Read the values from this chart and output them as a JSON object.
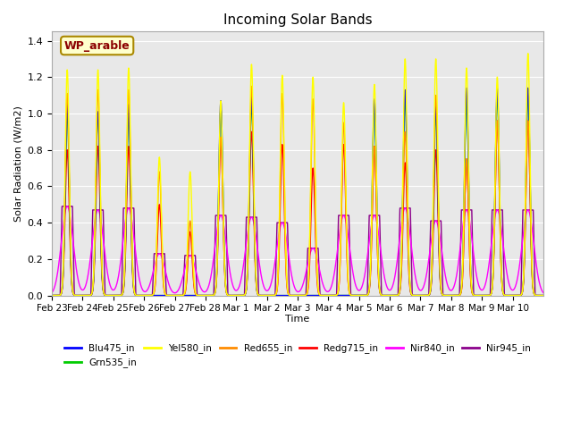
{
  "title": "Incoming Solar Bands",
  "xlabel": "Time",
  "ylabel": "Solar Radiation (W/m2)",
  "ylim": [
    0.0,
    1.45
  ],
  "yticks": [
    0.0,
    0.2,
    0.4,
    0.6,
    0.8,
    1.0,
    1.2,
    1.4
  ],
  "annotation_text": "WP_arable",
  "annotation_color": "#8B0000",
  "annotation_bg": "#FFFFCC",
  "annotation_border": "#AA8800",
  "series_colors": {
    "Blu475_in": "#0000FF",
    "Grn535_in": "#00CC00",
    "Yel580_in": "#FFFF00",
    "Red655_in": "#FF8C00",
    "Redg715_in": "#FF0000",
    "Nir840_in": "#FF00FF",
    "Nir945_in": "#8B008B"
  },
  "lw": 1.0,
  "n_days": 16,
  "ppd": 288,
  "bg_color": "#E8E8E8",
  "grid_color": "#FFFFFF",
  "day_peaks": [
    {
      "day": 0,
      "yel": 1.24,
      "red": 1.11,
      "redg": 0.8,
      "blu": 1.05,
      "grn": 1.0,
      "nir840": 0.49,
      "nir945": 0.49
    },
    {
      "day": 1,
      "yel": 1.24,
      "red": 1.13,
      "redg": 0.82,
      "blu": 1.01,
      "grn": 1.0,
      "nir840": 0.47,
      "nir945": 0.47
    },
    {
      "day": 2,
      "yel": 1.25,
      "red": 1.13,
      "redg": 0.82,
      "blu": 1.05,
      "grn": 1.02,
      "nir840": 0.48,
      "nir945": 0.48
    },
    {
      "day": 3,
      "yel": 0.76,
      "red": 0.68,
      "redg": 0.5,
      "blu": 0.0,
      "grn": 0.0,
      "nir840": 0.23,
      "nir945": 0.23
    },
    {
      "day": 4,
      "yel": 0.68,
      "red": 0.41,
      "redg": 0.35,
      "blu": 0.0,
      "grn": 0.0,
      "nir840": 0.22,
      "nir945": 0.22
    },
    {
      "day": 5,
      "yel": 1.07,
      "red": 0.87,
      "redg": 0.87,
      "blu": 1.07,
      "grn": 1.03,
      "nir840": 0.44,
      "nir945": 0.44
    },
    {
      "day": 6,
      "yel": 1.27,
      "red": 1.15,
      "redg": 0.9,
      "blu": 1.09,
      "grn": 1.05,
      "nir840": 0.43,
      "nir945": 0.43
    },
    {
      "day": 7,
      "yel": 1.21,
      "red": 1.11,
      "redg": 0.83,
      "blu": 0.0,
      "grn": 0.0,
      "nir840": 0.4,
      "nir945": 0.4
    },
    {
      "day": 8,
      "yel": 1.2,
      "red": 1.08,
      "redg": 0.7,
      "blu": 0.0,
      "grn": 0.0,
      "nir840": 0.26,
      "nir945": 0.26
    },
    {
      "day": 9,
      "yel": 1.06,
      "red": 0.95,
      "redg": 0.83,
      "blu": 0.0,
      "grn": 0.0,
      "nir840": 0.44,
      "nir945": 0.44
    },
    {
      "day": 10,
      "yel": 1.16,
      "red": 0.82,
      "redg": 0.82,
      "blu": 1.08,
      "grn": 1.05,
      "nir840": 0.44,
      "nir945": 0.44
    },
    {
      "day": 11,
      "yel": 1.3,
      "red": 0.9,
      "redg": 0.73,
      "blu": 1.13,
      "grn": 1.08,
      "nir840": 0.48,
      "nir945": 0.48
    },
    {
      "day": 12,
      "yel": 1.3,
      "red": 1.1,
      "redg": 0.8,
      "blu": 1.04,
      "grn": 1.01,
      "nir840": 0.41,
      "nir945": 0.41
    },
    {
      "day": 13,
      "yel": 1.25,
      "red": 0.75,
      "redg": 0.75,
      "blu": 1.14,
      "grn": 1.09,
      "nir840": 0.47,
      "nir945": 0.47
    },
    {
      "day": 14,
      "yel": 1.2,
      "red": 0.96,
      "redg": 0.96,
      "blu": 1.14,
      "grn": 1.1,
      "nir840": 0.47,
      "nir945": 0.47
    },
    {
      "day": 15,
      "yel": 1.33,
      "red": 0.96,
      "redg": 0.96,
      "blu": 1.14,
      "grn": 1.1,
      "nir840": 0.47,
      "nir945": 0.47
    }
  ],
  "x_tick_labels": [
    "Feb 23",
    "Feb 24",
    "Feb 25",
    "Feb 26",
    "Feb 27",
    "Feb 28",
    "Mar 1",
    "Mar 2",
    "Mar 3",
    "Mar 4",
    "Mar 5",
    "Mar 6",
    "Mar 7",
    "Mar 8",
    "Mar 9",
    "Mar 10"
  ]
}
